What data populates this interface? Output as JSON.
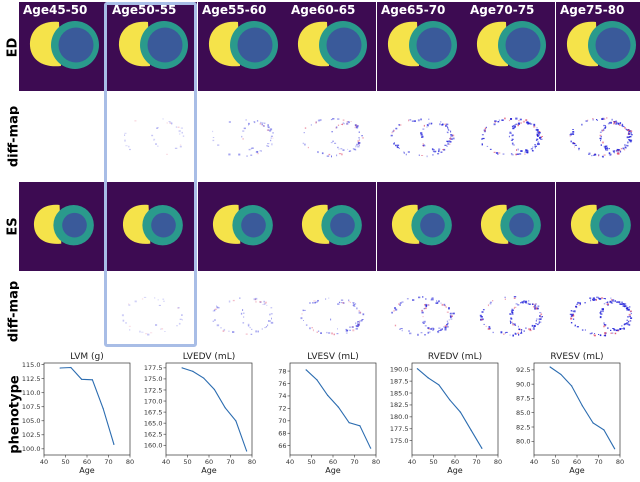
{
  "age_groups": [
    "Age45-50",
    "Age50-55",
    "Age55-60",
    "Age60-65",
    "Age65-70",
    "Age70-75",
    "Age75-80"
  ],
  "row_labels": {
    "ed": "ED",
    "diff1": "diff-map",
    "es": "ES",
    "diff2": "diff-map",
    "phenotype": "phenotype"
  },
  "colors": {
    "background": "#3d0b52",
    "rv": "#f5e34a",
    "myocardium": "#2a9a8c",
    "lv": "#3a5a9a",
    "diff_blue": "#1a1ad8",
    "diff_red": "#e05070",
    "line": "#2b6cb0",
    "highlight": "#a8bde6"
  },
  "highlighted_column": "Age50-55",
  "chart_data": [
    {
      "type": "line",
      "title": "LVM (g)",
      "xlabel": "Age",
      "ylabel": "",
      "x": [
        47.5,
        52.5,
        57.5,
        62.5,
        67.5,
        72.5
      ],
      "values": [
        114.4,
        114.5,
        112.4,
        112.3,
        107.2,
        100.8
      ],
      "xlim": [
        40,
        80
      ],
      "ylim": [
        98.9,
        115.3
      ],
      "xticks": [
        "40",
        "50",
        "60",
        "70",
        "80"
      ],
      "yticks": [
        "100.0",
        "102.5",
        "105.0",
        "107.5",
        "110.0",
        "112.5",
        "115.0"
      ]
    },
    {
      "type": "line",
      "title": "LVEDV (mL)",
      "xlabel": "Age",
      "ylabel": "",
      "x": [
        47.5,
        52.5,
        57.5,
        62.5,
        67.5,
        72.5,
        77.5
      ],
      "values": [
        177.5,
        176.7,
        175.2,
        172.6,
        168.5,
        165.5,
        158.7
      ],
      "xlim": [
        40,
        80
      ],
      "ylim": [
        157.8,
        178.6
      ],
      "xticks": [
        "40",
        "50",
        "60",
        "70",
        "80"
      ],
      "yticks": [
        "160.0",
        "162.5",
        "165.0",
        "167.5",
        "170.0",
        "172.5",
        "175.0",
        "177.5"
      ]
    },
    {
      "type": "line",
      "title": "LVESV (mL)",
      "xlabel": "Age",
      "ylabel": "",
      "x": [
        47.5,
        52.5,
        57.5,
        62.5,
        67.5,
        72.5,
        77.5
      ],
      "values": [
        78.2,
        76.6,
        74.1,
        72.2,
        69.7,
        69.2,
        65.6
      ],
      "xlim": [
        40,
        80
      ],
      "ylim": [
        64.5,
        79.3
      ],
      "xticks": [
        "40",
        "50",
        "60",
        "70",
        "80"
      ],
      "yticks": [
        "66",
        "68",
        "70",
        "72",
        "74",
        "76",
        "78"
      ]
    },
    {
      "type": "line",
      "title": "RVEDV (mL)",
      "xlabel": "Age",
      "ylabel": "",
      "x": [
        42.5,
        47.5,
        52.5,
        57.5,
        62.5,
        67.5,
        72.5
      ],
      "values": [
        190.1,
        188.2,
        186.7,
        183.6,
        181.0,
        177.2,
        173.4
      ],
      "xlim": [
        40,
        80
      ],
      "ylim": [
        172.0,
        191.3
      ],
      "xticks": [
        "40",
        "50",
        "60",
        "70",
        "80"
      ],
      "yticks": [
        "175.0",
        "177.5",
        "180.0",
        "182.5",
        "185.0",
        "187.5",
        "190.0"
      ]
    },
    {
      "type": "line",
      "title": "RVESV (mL)",
      "xlabel": "Age",
      "ylabel": "",
      "x": [
        47.5,
        52.5,
        57.5,
        62.5,
        67.5,
        72.5,
        77.5
      ],
      "values": [
        93.0,
        91.7,
        89.7,
        86.2,
        83.2,
        82.0,
        78.7
      ],
      "xlim": [
        40,
        80
      ],
      "ylim": [
        77.6,
        93.7
      ],
      "xticks": [
        "40",
        "50",
        "60",
        "70",
        "80"
      ],
      "yticks": [
        "80.0",
        "82.5",
        "85.0",
        "87.5",
        "90.0",
        "92.5"
      ]
    }
  ]
}
